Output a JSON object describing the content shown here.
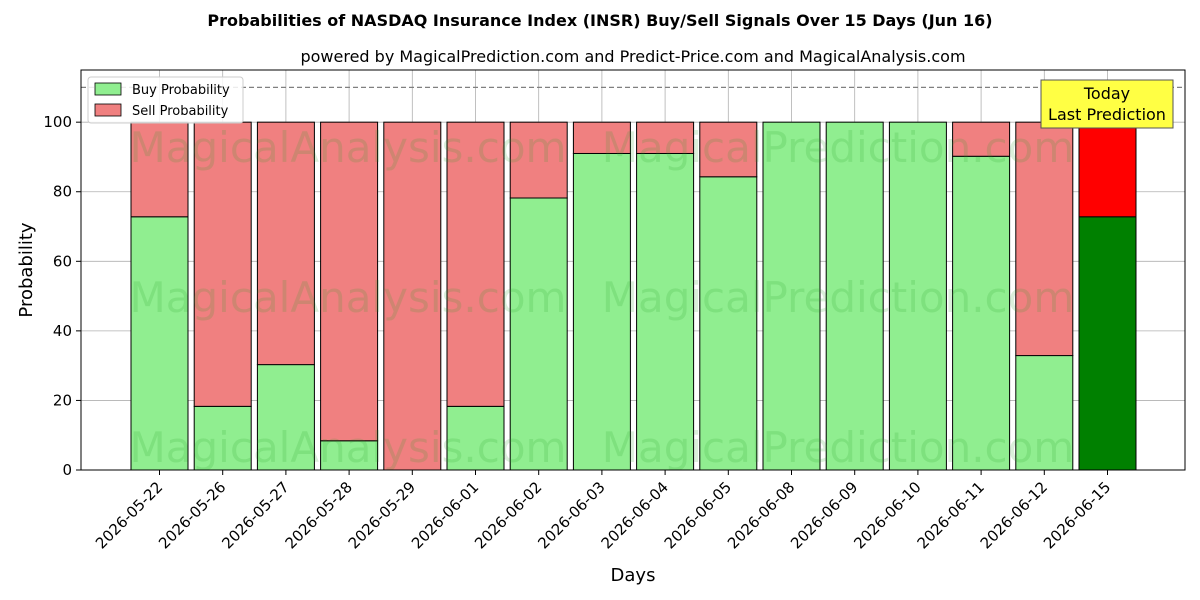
{
  "chart_data": {
    "type": "bar",
    "stacked": true,
    "title": "Probabilities of NASDAQ Insurance Index (INSR) Buy/Sell Signals Over 15 Days (Jun 16)",
    "subtitle": "powered by MagicalPrediction.com and Predict-Price.com and MagicalAnalysis.com",
    "xlabel": "Days",
    "ylabel": "Probability",
    "ylim": [
      0,
      115
    ],
    "yticks": [
      0,
      20,
      40,
      60,
      80,
      100
    ],
    "grid": true,
    "legend_placement": "top-left",
    "reference_line": 110,
    "categories": [
      "2026-05-22",
      "2026-05-26",
      "2026-05-27",
      "2026-05-28",
      "2026-05-29",
      "2026-06-01",
      "2026-06-02",
      "2026-06-03",
      "2026-06-04",
      "2026-06-05",
      "2026-06-08",
      "2026-06-09",
      "2026-06-10",
      "2026-06-11",
      "2026-06-12",
      "2026-06-15"
    ],
    "series": [
      {
        "name": "Buy Probability",
        "color": "#90ee90",
        "values": [
          72.8,
          18.3,
          30.3,
          8.4,
          0,
          18.3,
          78.2,
          91.0,
          91.0,
          84.3,
          100,
          100,
          100,
          90.2,
          32.9,
          72.8
        ]
      },
      {
        "name": "Sell Probability",
        "color": "#f08080",
        "values": [
          27.2,
          81.7,
          69.7,
          91.6,
          100,
          81.7,
          21.8,
          9.0,
          9.0,
          15.7,
          0,
          0,
          0,
          9.8,
          67.1,
          27.2
        ]
      }
    ],
    "highlight": {
      "index": 15,
      "buy_color": "#008000",
      "sell_color": "#ff0000"
    },
    "annotation": {
      "line1": "Today",
      "line2": "Last Prediction",
      "background": "#ffff44"
    },
    "watermarks": [
      "MagicalAnalysis.com",
      "MagicalPrediction.com"
    ]
  }
}
